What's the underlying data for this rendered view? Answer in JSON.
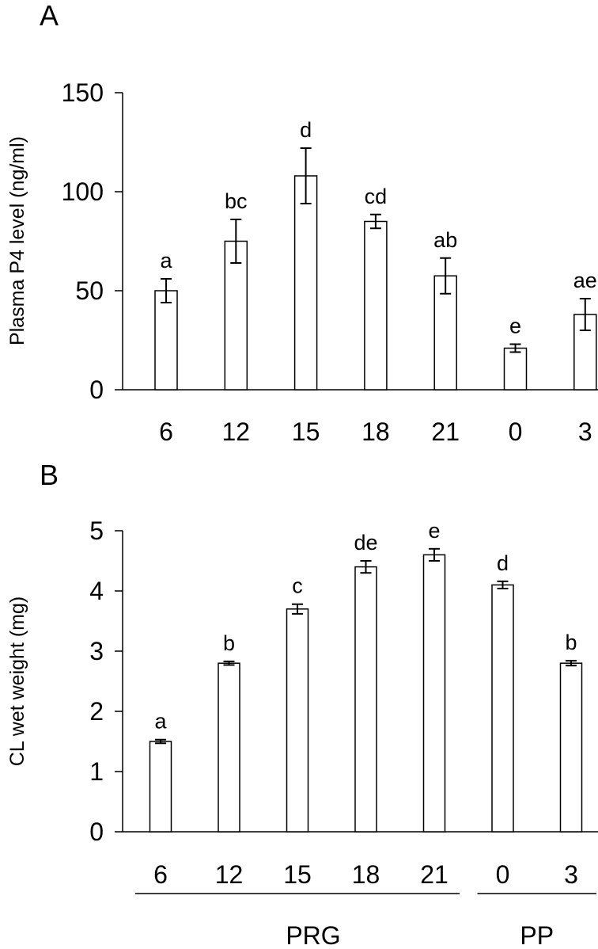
{
  "chart_data": [
    {
      "panel": "A",
      "type": "bar",
      "ylabel": "Plasma P4 level (ng/ml)",
      "ylim": [
        0,
        150
      ],
      "yticks": [
        0,
        50,
        100,
        150
      ],
      "categories": [
        "6",
        "12",
        "15",
        "18",
        "21",
        "0",
        "3"
      ],
      "values": [
        50,
        75,
        108,
        85,
        57.5,
        21,
        38
      ],
      "errors": [
        6,
        11,
        14,
        3.5,
        9,
        2,
        8
      ],
      "labels": [
        "a",
        "bc",
        "d",
        "cd",
        "ab",
        "e",
        "ae"
      ]
    },
    {
      "panel": "B",
      "type": "bar",
      "ylabel": "CL wet weight (mg)",
      "ylim": [
        0,
        5
      ],
      "yticks": [
        0,
        1,
        2,
        3,
        4,
        5
      ],
      "categories": [
        "6",
        "12",
        "15",
        "18",
        "21",
        "0",
        "3"
      ],
      "values": [
        1.5,
        2.8,
        3.7,
        4.4,
        4.6,
        4.1,
        2.8
      ],
      "errors": [
        0.03,
        0.03,
        0.08,
        0.1,
        0.1,
        0.06,
        0.04
      ],
      "labels": [
        "a",
        "b",
        "c",
        "de",
        "e",
        "d",
        "b"
      ],
      "groups": [
        {
          "name": "PRG",
          "from": 0,
          "to": 4
        },
        {
          "name": "PP",
          "from": 5,
          "to": 6
        }
      ]
    }
  ]
}
